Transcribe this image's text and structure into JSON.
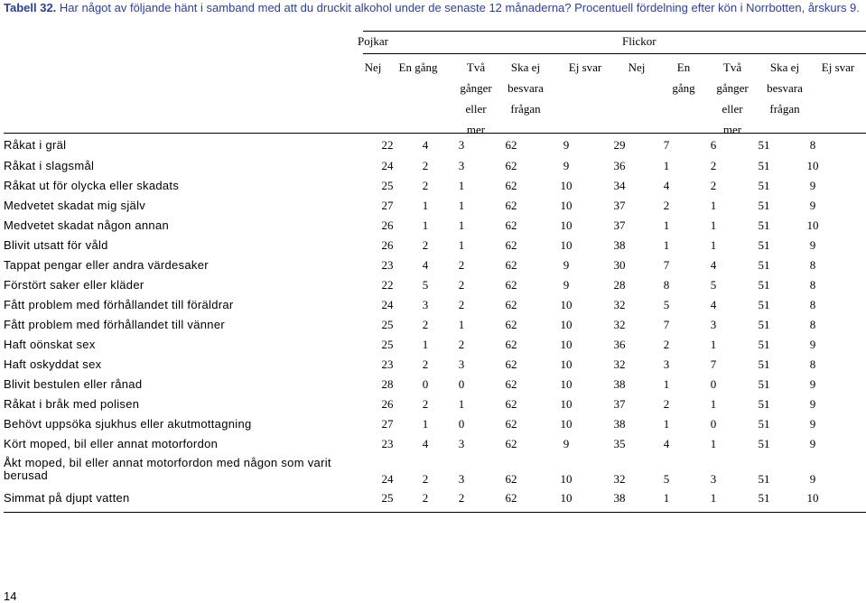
{
  "caption": {
    "label": "Tabell 32.",
    "text": "Har något av följande hänt i samband med att du druckit alkohol under de senaste 12 månaderna? Procentuell fördelning efter kön i Norrbotten, årskurs 9."
  },
  "groups": [
    "Pojkar",
    "Flickor"
  ],
  "columns": [
    [
      "Nej"
    ],
    [
      "En gång"
    ],
    [
      "Två",
      "gånger",
      "eller",
      "mer"
    ],
    [
      "Ska ej",
      "besvara",
      "frågan"
    ],
    [
      "Ej svar"
    ],
    [
      "Nej"
    ],
    [
      "En",
      "gång"
    ],
    [
      "Två",
      "gånger",
      "eller",
      "mer"
    ],
    [
      "Ska ej",
      "besvara",
      "frågan"
    ],
    [
      "Ej svar"
    ]
  ],
  "rows": [
    {
      "label": "Råkat i gräl",
      "values": [
        "22",
        "4",
        "3",
        "62",
        "9",
        "29",
        "7",
        "6",
        "51",
        "8"
      ]
    },
    {
      "label": "Råkat i slagsmål",
      "values": [
        "24",
        "2",
        "3",
        "62",
        "9",
        "36",
        "1",
        "2",
        "51",
        "10"
      ]
    },
    {
      "label": "Råkat ut för olycka eller skadats",
      "values": [
        "25",
        "2",
        "1",
        "62",
        "10",
        "34",
        "4",
        "2",
        "51",
        "9"
      ]
    },
    {
      "label": "Medvetet skadat mig själv",
      "values": [
        "27",
        "1",
        "1",
        "62",
        "10",
        "37",
        "2",
        "1",
        "51",
        "9"
      ]
    },
    {
      "label": "Medvetet skadat någon annan",
      "values": [
        "26",
        "1",
        "1",
        "62",
        "10",
        "37",
        "1",
        "1",
        "51",
        "10"
      ]
    },
    {
      "label": "Blivit utsatt för våld",
      "values": [
        "26",
        "2",
        "1",
        "62",
        "10",
        "38",
        "1",
        "1",
        "51",
        "9"
      ]
    },
    {
      "label": "Tappat pengar eller andra värdesaker",
      "values": [
        "23",
        "4",
        "2",
        "62",
        "9",
        "30",
        "7",
        "4",
        "51",
        "8"
      ]
    },
    {
      "label": "Förstört saker eller kläder",
      "values": [
        "22",
        "5",
        "2",
        "62",
        "9",
        "28",
        "8",
        "5",
        "51",
        "8"
      ]
    },
    {
      "label": "Fått problem med förhållandet till föräldrar",
      "values": [
        "24",
        "3",
        "2",
        "62",
        "10",
        "32",
        "5",
        "4",
        "51",
        "8"
      ]
    },
    {
      "label": "Fått problem med förhållandet till vänner",
      "values": [
        "25",
        "2",
        "1",
        "62",
        "10",
        "32",
        "7",
        "3",
        "51",
        "8"
      ]
    },
    {
      "label": "Haft oönskat sex",
      "values": [
        "25",
        "1",
        "2",
        "62",
        "10",
        "36",
        "2",
        "1",
        "51",
        "9"
      ]
    },
    {
      "label": "Haft oskyddat sex",
      "values": [
        "23",
        "2",
        "3",
        "62",
        "10",
        "32",
        "3",
        "7",
        "51",
        "8"
      ]
    },
    {
      "label": "Blivit bestulen eller rånad",
      "values": [
        "28",
        "0",
        "0",
        "62",
        "10",
        "38",
        "1",
        "0",
        "51",
        "9"
      ]
    },
    {
      "label": "Råkat i bråk med polisen",
      "values": [
        "26",
        "2",
        "1",
        "62",
        "10",
        "37",
        "2",
        "1",
        "51",
        "9"
      ]
    },
    {
      "label": "Behövt uppsöka sjukhus eller akutmottagning",
      "values": [
        "27",
        "1",
        "0",
        "62",
        "10",
        "38",
        "1",
        "0",
        "51",
        "9"
      ]
    },
    {
      "label": "Kört moped, bil eller annat motorfordon",
      "values": [
        "23",
        "4",
        "3",
        "62",
        "9",
        "35",
        "4",
        "1",
        "51",
        "9"
      ]
    },
    {
      "label": "Åkt moped, bil eller annat motorfordon med någon som varit berusad",
      "values": [
        "24",
        "2",
        "3",
        "62",
        "10",
        "32",
        "5",
        "3",
        "51",
        "9"
      ]
    },
    {
      "label": "Simmat på djupt vatten",
      "values": [
        "25",
        "2",
        "2",
        "62",
        "10",
        "38",
        "1",
        "1",
        "51",
        "10"
      ]
    }
  ],
  "page_number": "14"
}
